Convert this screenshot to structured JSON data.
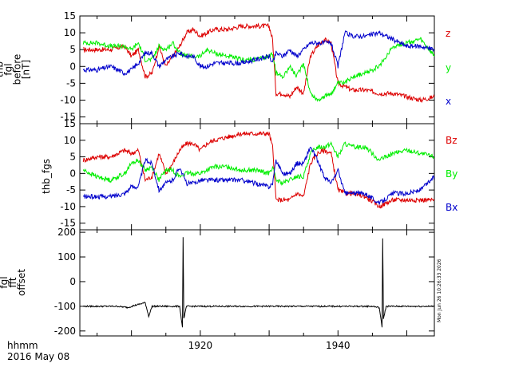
{
  "colors": {
    "x": "#0000cc",
    "y": "#00ee00",
    "z": "#dd0000",
    "offset": "#000000",
    "axis": "#000000"
  },
  "footer": {
    "time_unit": "hhmm",
    "date": "2016 May 08"
  },
  "timestamp_text": "Mon Jun 26 10:26:33 2026",
  "chart_data": [
    {
      "type": "line",
      "ylabel_lines": [
        "thb",
        "fgl",
        "before",
        "[nT]"
      ],
      "ylim": [
        -17,
        15
      ],
      "yticks": [
        -15,
        -10,
        -5,
        0,
        5,
        10,
        15
      ],
      "xlim": [
        1902.5,
        1954
      ],
      "x": [
        1903,
        1905,
        1907,
        1909,
        1910,
        1911,
        1912,
        1913,
        1914,
        1915,
        1916,
        1917,
        1918,
        1919,
        1920,
        1921,
        1922,
        1924,
        1926,
        1928,
        1930,
        1930.5,
        1931,
        1932,
        1933,
        1934,
        1935,
        1936,
        1937,
        1938,
        1939,
        1940,
        1941,
        1942,
        1944,
        1946,
        1948,
        1950,
        1952,
        1954
      ],
      "series": [
        {
          "name": "z",
          "color_key": "z",
          "values": [
            5,
            5,
            5,
            6,
            3,
            5,
            -3,
            -2,
            6,
            0,
            3,
            6,
            10,
            11,
            9,
            10,
            11,
            11,
            12,
            12,
            12,
            8,
            -8,
            -8,
            -9,
            -6,
            -8,
            3,
            6,
            8,
            7,
            -5,
            -6,
            -7,
            -7,
            -8,
            -8,
            -9,
            -10,
            -9
          ]
        },
        {
          "name": "y",
          "color_key": "y",
          "values": [
            7,
            7,
            6,
            6,
            5,
            7,
            2,
            2,
            6,
            5,
            7,
            4,
            3,
            3,
            3,
            5,
            4,
            3,
            2,
            2,
            3,
            4,
            -2,
            -3,
            0,
            -3,
            1,
            -8,
            -10,
            -9,
            -8,
            -5,
            -5,
            -3,
            -2,
            0,
            6,
            7,
            8,
            3
          ]
        },
        {
          "name": "x",
          "color_key": "x",
          "values": [
            -1,
            -1,
            0,
            -2,
            -1,
            1,
            4,
            4,
            0,
            2,
            3,
            4,
            3,
            3,
            0,
            0,
            1,
            1,
            1,
            2,
            3,
            1,
            4,
            3,
            5,
            3,
            5,
            7,
            7,
            7,
            7,
            0,
            10,
            9,
            9,
            10,
            8,
            6,
            6,
            5
          ]
        }
      ]
    },
    {
      "type": "line",
      "ylabel_lines": [
        "thb_fgs"
      ],
      "ylim": [
        -17,
        15
      ],
      "yticks": [
        -15,
        -10,
        -5,
        0,
        5,
        10,
        15
      ],
      "xlim": [
        1902.5,
        1954
      ],
      "x": [
        1903,
        1905,
        1907,
        1909,
        1910,
        1911,
        1912,
        1913,
        1914,
        1915,
        1916,
        1917,
        1918,
        1919,
        1920,
        1921,
        1922,
        1924,
        1926,
        1928,
        1930,
        1930.5,
        1931,
        1932,
        1933,
        1934,
        1935,
        1936,
        1937,
        1938,
        1939,
        1940,
        1941,
        1942,
        1944,
        1946,
        1948,
        1950,
        1952,
        1954
      ],
      "series": [
        {
          "name": "Bz",
          "color_key": "z",
          "values": [
            4,
            5,
            5,
            7,
            6,
            7,
            -2,
            -1,
            6,
            0,
            3,
            7,
            9,
            9,
            7,
            9,
            10,
            11,
            12,
            12,
            12,
            8,
            -8,
            -8,
            -8,
            -6,
            -7,
            3,
            6,
            7,
            6,
            -5,
            -6,
            -6,
            -7,
            -10,
            -8,
            -8,
            -8,
            -8
          ]
        },
        {
          "name": "By",
          "color_key": "y",
          "values": [
            1,
            -1,
            -2,
            0,
            3,
            4,
            1,
            2,
            -2,
            1,
            1,
            -1,
            0,
            0,
            0,
            1,
            2,
            2,
            1,
            1,
            0,
            2,
            -2,
            -3,
            -2,
            -1,
            -1,
            6,
            8,
            8,
            9,
            5,
            9,
            8,
            8,
            4,
            6,
            7,
            6,
            5
          ]
        },
        {
          "name": "Bx",
          "color_key": "x",
          "values": [
            -7,
            -7,
            -7,
            -6,
            -4,
            -4,
            4,
            3,
            -5,
            -3,
            -2,
            2,
            -3,
            -3,
            -2,
            -2,
            -2,
            -2,
            -2,
            -3,
            -4,
            -3,
            4,
            0,
            0,
            3,
            3,
            8,
            4,
            -1,
            -3,
            1,
            -6,
            -6,
            -6,
            -9,
            -6,
            -6,
            -5,
            -1
          ]
        }
      ]
    },
    {
      "type": "line",
      "ylabel_lines": [
        "fgl",
        "fft",
        "offset"
      ],
      "ylim": [
        -220,
        210
      ],
      "yticks": [
        -200,
        -100,
        0,
        100,
        200
      ],
      "xlim": [
        1902.5,
        1954
      ],
      "xticks": [
        1920,
        1940
      ],
      "x": [
        1903,
        1905,
        1908,
        1909.5,
        1910,
        1912,
        1912.5,
        1913,
        1915,
        1917,
        1917.4,
        1917.5,
        1917.6,
        1918,
        1920,
        1925,
        1930,
        1935,
        1940,
        1945,
        1946,
        1946.4,
        1946.5,
        1946.6,
        1947,
        1950,
        1954
      ],
      "series": [
        {
          "name": "offset",
          "color_key": "offset",
          "values": [
            -100,
            -100,
            -100,
            -105,
            -100,
            -85,
            -140,
            -100,
            -100,
            -100,
            -185,
            180,
            -150,
            -100,
            -100,
            -100,
            -100,
            -100,
            -100,
            -100,
            -105,
            -185,
            175,
            -150,
            -100,
            -100,
            -100
          ]
        }
      ]
    }
  ]
}
